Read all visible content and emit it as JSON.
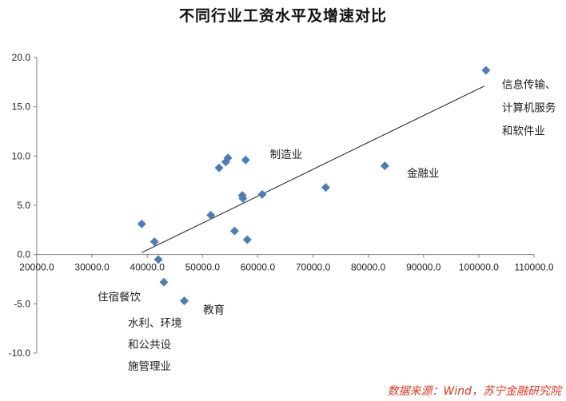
{
  "chart_data": {
    "type": "scatter",
    "title": "不同行业工资水平及增速对比",
    "xlim": [
      20000,
      110000
    ],
    "ylim": [
      -10,
      20
    ],
    "x_ticks": [
      "20000.0",
      "30000.0",
      "40000.0",
      "50000.0",
      "60000.0",
      "70000.0",
      "80000.0",
      "90000.0",
      "100000.0",
      "110000.0"
    ],
    "y_ticks": [
      "20.0",
      "15.0",
      "10.0",
      "5.0",
      "0.0",
      "-5.0",
      "-10.0"
    ],
    "grid": false,
    "marker_color": "#4a7ebb",
    "points": [
      {
        "x": 39000,
        "y": 3.1
      },
      {
        "x": 41300,
        "y": 1.3
      },
      {
        "x": 42000,
        "y": -0.5
      },
      {
        "x": 43000,
        "y": -2.8
      },
      {
        "x": 46700,
        "y": -4.7
      },
      {
        "x": 51500,
        "y": 4.0
      },
      {
        "x": 53000,
        "y": 8.8
      },
      {
        "x": 54200,
        "y": 9.4
      },
      {
        "x": 54600,
        "y": 9.8
      },
      {
        "x": 55800,
        "y": 2.4
      },
      {
        "x": 57200,
        "y": 6.0
      },
      {
        "x": 57300,
        "y": 5.7
      },
      {
        "x": 57800,
        "y": 9.6
      },
      {
        "x": 58100,
        "y": 1.5
      },
      {
        "x": 60800,
        "y": 6.1
      },
      {
        "x": 72300,
        "y": 6.8
      },
      {
        "x": 83000,
        "y": 9.0
      },
      {
        "x": 101300,
        "y": 18.7
      }
    ],
    "trendline": {
      "x1": 39000,
      "y1": 0.2,
      "x2": 101000,
      "y2": 17.1
    },
    "annotations": [
      {
        "lines": [
          "信息传输、",
          "计算机服务",
          "和软件业"
        ],
        "x": 104200,
        "y": 17.3,
        "dy": 29
      },
      {
        "lines": [
          "制造业"
        ],
        "x": 62200,
        "y": 10.2,
        "dy": 0
      },
      {
        "lines": [
          "金融业"
        ],
        "x": 87000,
        "y": 8.3,
        "dy": 0
      },
      {
        "lines": [
          "住宿餐饮"
        ],
        "x": 31000,
        "y": -4.3,
        "dy": 0
      },
      {
        "lines": [
          "水利、环境",
          "和公共设",
          "施管理业"
        ],
        "x": 36500,
        "y": -6.9,
        "dy": 27
      },
      {
        "lines": [
          "教育"
        ],
        "x": 50100,
        "y": -5.6,
        "dy": 0
      }
    ]
  },
  "source_note": "数据来源：Wind，苏宁金融研究院"
}
